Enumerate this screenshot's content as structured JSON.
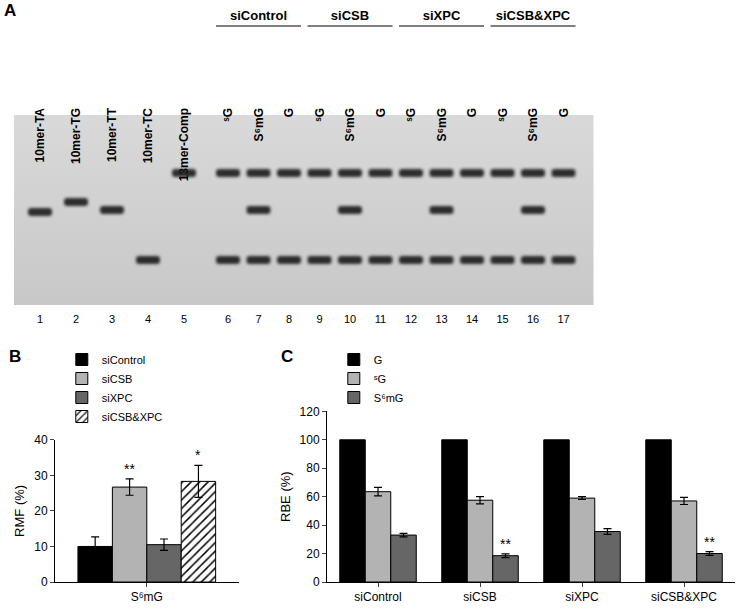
{
  "panel_labels": [
    "A",
    "B",
    "C"
  ],
  "gel": {
    "groups": [
      {
        "label": "siControl",
        "lanes": [
          6,
          7,
          8
        ]
      },
      {
        "label": "siCSB",
        "lanes": [
          9,
          10,
          11
        ]
      },
      {
        "label": "siXPC",
        "lanes": [
          12,
          13,
          14
        ]
      },
      {
        "label": "siCSB&XPC",
        "lanes": [
          15,
          16,
          17
        ]
      }
    ],
    "lanes": [
      {
        "number": 1,
        "label": "10mer-TA",
        "bands": [
          1
        ]
      },
      {
        "number": 2,
        "label": "10mer-TG",
        "bands": [
          2
        ]
      },
      {
        "number": 3,
        "label": "10mer-TT",
        "bands": [
          3
        ]
      },
      {
        "number": 4,
        "label": "10mer-TC",
        "bands": [
          4
        ]
      },
      {
        "number": 5,
        "label": "13mer-Comp",
        "bands": [
          5
        ]
      },
      {
        "number": 6,
        "label": "ˢG",
        "bands": [
          5,
          4
        ]
      },
      {
        "number": 7,
        "label": "S⁶mG",
        "bands": [
          5,
          3,
          4
        ]
      },
      {
        "number": 8,
        "label": "G",
        "bands": [
          5,
          4
        ]
      },
      {
        "number": 9,
        "label": "ˢG",
        "bands": [
          5,
          4
        ]
      },
      {
        "number": 10,
        "label": "S⁶mG",
        "bands": [
          5,
          3,
          4
        ]
      },
      {
        "number": 11,
        "label": "G",
        "bands": [
          5,
          4
        ]
      },
      {
        "number": 12,
        "label": "ˢG",
        "bands": [
          5,
          4
        ]
      },
      {
        "number": 13,
        "label": "S⁶mG",
        "bands": [
          5,
          3,
          4
        ]
      },
      {
        "number": 14,
        "label": "G",
        "bands": [
          5,
          4
        ]
      },
      {
        "number": 15,
        "label": "ˢG",
        "bands": [
          5,
          4
        ]
      },
      {
        "number": 16,
        "label": "S⁶mG",
        "bands": [
          5,
          3,
          4
        ]
      },
      {
        "number": 17,
        "label": "G",
        "bands": [
          5,
          4
        ]
      }
    ]
  },
  "chart_data": [
    {
      "type": "bar",
      "ylabel": "RMF (%)",
      "categories": [
        "S⁶mG"
      ],
      "series": [
        {
          "name": "siControl",
          "color": "#000000",
          "values": [
            10.0
          ],
          "errors": [
            2.7
          ]
        },
        {
          "name": "siCSB",
          "color": "#b3b3b3",
          "values": [
            26.7
          ],
          "errors": [
            2.3
          ]
        },
        {
          "name": "siXPC",
          "color": "#666666",
          "values": [
            10.5
          ],
          "errors": [
            1.6
          ]
        },
        {
          "name": "siCSB&XPC",
          "color": "#ffffff",
          "marker": "hatch",
          "values": [
            28.3
          ],
          "errors": [
            4.5
          ]
        }
      ],
      "ylim": [
        0,
        40
      ],
      "yticks": [
        0,
        10,
        20,
        30,
        40
      ],
      "grid": false,
      "legend": "upper left",
      "annotations": [
        {
          "text": "**",
          "series": "siCSB",
          "category": "S⁶mG"
        },
        {
          "text": "*",
          "series": "siCSB&XPC",
          "category": "S⁶mG"
        }
      ]
    },
    {
      "type": "bar",
      "ylabel": "RBE (%)",
      "categories": [
        "siControl",
        "siCSB",
        "siXPC",
        "siCSB&XPC"
      ],
      "series": [
        {
          "name": "G",
          "color": "#000000",
          "values": [
            100,
            100,
            100,
            100
          ]
        },
        {
          "name": "ˢG",
          "color": "#b3b3b3",
          "values": [
            63.5,
            57.5,
            59,
            57
          ],
          "errors": [
            3.0,
            2.5,
            1.0,
            2.5
          ]
        },
        {
          "name": "S⁶mG",
          "color": "#666666",
          "values": [
            33,
            18.5,
            35.5,
            20
          ],
          "errors": [
            1.2,
            1.3,
            2.0,
            1.3
          ]
        }
      ],
      "ylim": [
        0,
        120
      ],
      "yticks": [
        0,
        20,
        40,
        60,
        80,
        100,
        120
      ],
      "grid": false,
      "legend": "upper left",
      "annotations": [
        {
          "text": "**",
          "series": "S⁶mG",
          "category": "siCSB"
        },
        {
          "text": "**",
          "series": "S⁶mG",
          "category": "siCSB&XPC"
        }
      ]
    }
  ]
}
